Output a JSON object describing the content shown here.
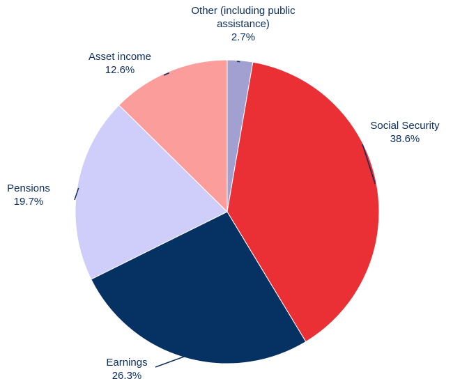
{
  "chart_data": {
    "type": "pie",
    "unit": "%",
    "slices": [
      {
        "label": "Other (including public assistance)",
        "label_lines": [
          "Other (including public",
          "assistance)"
        ],
        "value": 2.7,
        "value_text": "2.7%",
        "color": "#a29fd1"
      },
      {
        "label": "Social Security",
        "label_lines": [
          "Social Security"
        ],
        "value": 38.6,
        "value_text": "38.6%",
        "color": "#ea3034"
      },
      {
        "label": "Earnings",
        "label_lines": [
          "Earnings"
        ],
        "value": 26.3,
        "value_text": "26.3%",
        "color": "#063163"
      },
      {
        "label": "Pensions",
        "label_lines": [
          "Pensions"
        ],
        "value": 19.7,
        "value_text": "19.7%",
        "color": "#cfcdfa"
      },
      {
        "label": "Asset income",
        "label_lines": [
          "Asset income"
        ],
        "value": 12.6,
        "value_text": "12.6%",
        "color": "#fb9d9b"
      }
    ],
    "start": "12 o'clock",
    "direction": "clockwise",
    "label_color": "#0b2d5c"
  }
}
